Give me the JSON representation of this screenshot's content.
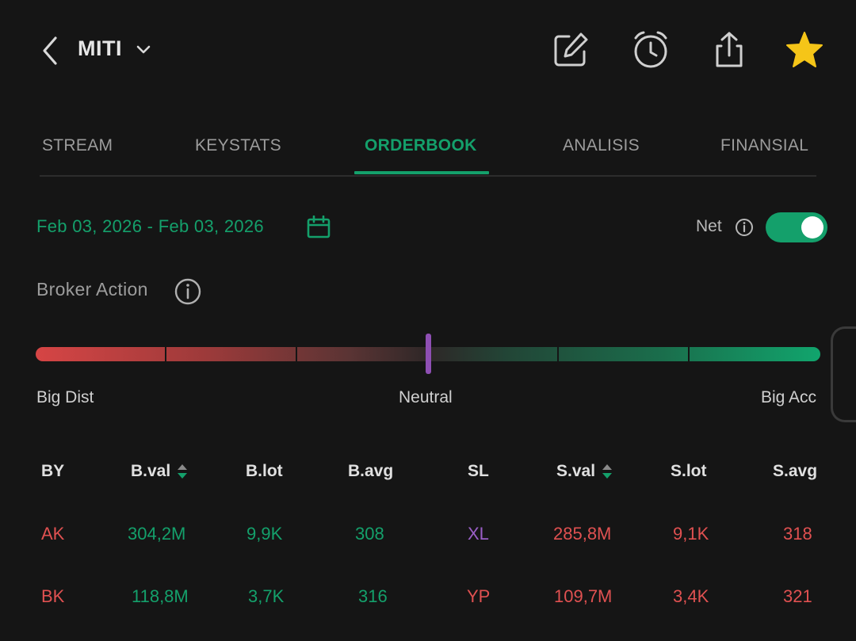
{
  "header": {
    "ticker": "MITI",
    "icons": [
      "back-icon",
      "chevron-down-icon",
      "edit-icon",
      "alarm-icon",
      "share-icon",
      "star-icon"
    ]
  },
  "tabs": [
    {
      "label": "STREAM",
      "active": false
    },
    {
      "label": "KEYSTATS",
      "active": false
    },
    {
      "label": "ORDERBOOK",
      "active": true
    },
    {
      "label": "ANALISIS",
      "active": false
    },
    {
      "label": "FINANSIAL",
      "active": false
    }
  ],
  "filters": {
    "date_range": "Feb 03, 2026 - Feb 03, 2026",
    "net_label": "Net",
    "net_enabled": true
  },
  "broker_action": {
    "title": "Broker Action",
    "labels": {
      "left": "Big Dist",
      "center": "Neutral",
      "right": "Big Acc"
    },
    "marker_level": 0.5
  },
  "table": {
    "headers": [
      "BY",
      "B.val",
      "B.lot",
      "B.avg",
      "SL",
      "S.val",
      "S.lot",
      "S.avg"
    ],
    "rows": [
      {
        "by": "AK",
        "bval": "304,2M",
        "blot": "9,9K",
        "bavg": "308",
        "sl": "XL",
        "sval": "285,8M",
        "slot": "9,1K",
        "savg": "318"
      },
      {
        "by": "BK",
        "bval": "118,8M",
        "blot": "3,7K",
        "bavg": "316",
        "sl": "YP",
        "sval": "109,7M",
        "slot": "3,4K",
        "savg": "321"
      }
    ]
  },
  "colors": {
    "accent_green": "#14a06b",
    "sell_red": "#e05151",
    "star_yellow": "#f5c518",
    "marker_purple": "#8e4fb3",
    "foreign_purple": "#9a5fc7"
  }
}
